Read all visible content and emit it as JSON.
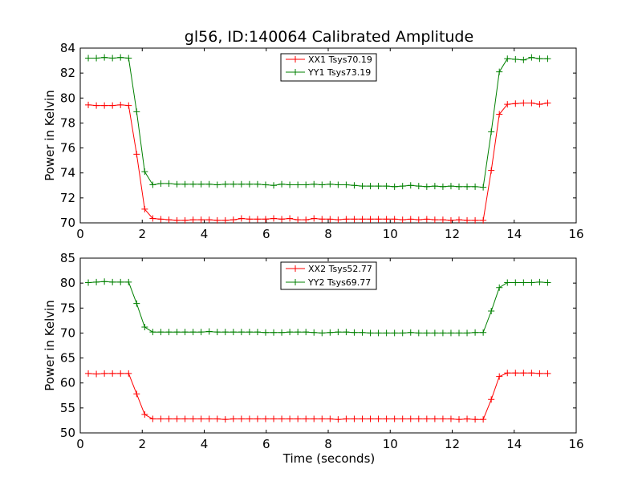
{
  "figure_title": "gl56, ID:140064 Calibrated Amplitude",
  "chart_data": [
    {
      "type": "line",
      "title": "gl56, ID:140064 Calibrated Amplitude",
      "xlabel": "",
      "ylabel": "Power in Kelvin",
      "xlim": [
        0,
        16
      ],
      "ylim": [
        70,
        84
      ],
      "xticks": [
        "0",
        "2",
        "4",
        "6",
        "8",
        "10",
        "12",
        "14",
        "16"
      ],
      "yticks": [
        "70",
        "72",
        "74",
        "76",
        "78",
        "80",
        "82",
        "84"
      ],
      "legend_position": "top-center",
      "x": [
        0.26,
        0.52,
        0.78,
        1.04,
        1.3,
        1.56,
        1.82,
        2.08,
        2.34,
        2.6,
        2.86,
        3.12,
        3.38,
        3.64,
        3.9,
        4.16,
        4.42,
        4.68,
        4.94,
        5.2,
        5.46,
        5.72,
        5.98,
        6.24,
        6.5,
        6.76,
        7.02,
        7.28,
        7.54,
        7.8,
        8.06,
        8.32,
        8.58,
        8.84,
        9.1,
        9.36,
        9.62,
        9.88,
        10.14,
        10.4,
        10.66,
        10.92,
        11.18,
        11.44,
        11.7,
        11.96,
        12.22,
        12.48,
        12.74,
        13.0,
        13.26,
        13.52,
        13.78,
        14.04,
        14.3,
        14.56,
        14.82,
        15.08
      ],
      "series": [
        {
          "name": "XX1 Tsys70.19",
          "color": "#ff0000",
          "values": [
            79.45,
            79.4,
            79.4,
            79.4,
            79.45,
            79.4,
            75.5,
            71.1,
            70.35,
            70.3,
            70.25,
            70.2,
            70.2,
            70.25,
            70.25,
            70.25,
            70.2,
            70.2,
            70.25,
            70.35,
            70.3,
            70.3,
            70.3,
            70.35,
            70.3,
            70.35,
            70.25,
            70.25,
            70.35,
            70.3,
            70.3,
            70.25,
            70.3,
            70.3,
            70.3,
            70.3,
            70.3,
            70.3,
            70.3,
            70.25,
            70.3,
            70.25,
            70.3,
            70.25,
            70.25,
            70.2,
            70.25,
            70.2,
            70.2,
            70.2,
            74.2,
            78.7,
            79.5,
            79.55,
            79.6,
            79.6,
            79.5,
            79.6
          ]
        },
        {
          "name": "YY1 Tsys73.19",
          "color": "#008000",
          "values": [
            83.2,
            83.2,
            83.25,
            83.2,
            83.25,
            83.2,
            78.9,
            74.1,
            73.05,
            73.15,
            73.15,
            73.1,
            73.1,
            73.1,
            73.1,
            73.1,
            73.05,
            73.1,
            73.1,
            73.1,
            73.1,
            73.1,
            73.05,
            73.0,
            73.1,
            73.05,
            73.05,
            73.05,
            73.1,
            73.05,
            73.1,
            73.05,
            73.05,
            73.0,
            72.95,
            72.95,
            72.95,
            72.95,
            72.9,
            72.95,
            73.0,
            72.95,
            72.9,
            72.95,
            72.9,
            72.95,
            72.9,
            72.9,
            72.9,
            72.85,
            77.3,
            82.1,
            83.15,
            83.1,
            83.05,
            83.25,
            83.15,
            83.15
          ]
        }
      ]
    },
    {
      "type": "line",
      "title": "",
      "xlabel": "Time (seconds)",
      "ylabel": "Power in Kelvin",
      "xlim": [
        0,
        16
      ],
      "ylim": [
        50,
        85
      ],
      "xticks": [
        "0",
        "2",
        "4",
        "6",
        "8",
        "10",
        "12",
        "14",
        "16"
      ],
      "yticks": [
        "50",
        "55",
        "60",
        "65",
        "70",
        "75",
        "80",
        "85"
      ],
      "legend_position": "top-center",
      "x": [
        0.26,
        0.52,
        0.78,
        1.04,
        1.3,
        1.56,
        1.82,
        2.08,
        2.34,
        2.6,
        2.86,
        3.12,
        3.38,
        3.64,
        3.9,
        4.16,
        4.42,
        4.68,
        4.94,
        5.2,
        5.46,
        5.72,
        5.98,
        6.24,
        6.5,
        6.76,
        7.02,
        7.28,
        7.54,
        7.8,
        8.06,
        8.32,
        8.58,
        8.84,
        9.1,
        9.36,
        9.62,
        9.88,
        10.14,
        10.4,
        10.66,
        10.92,
        11.18,
        11.44,
        11.7,
        11.96,
        12.22,
        12.48,
        12.74,
        13.0,
        13.26,
        13.52,
        13.78,
        14.04,
        14.3,
        14.56,
        14.82,
        15.08
      ],
      "series": [
        {
          "name": "XX2 Tsys52.77",
          "color": "#ff0000",
          "values": [
            61.9,
            61.8,
            61.9,
            61.9,
            61.9,
            61.9,
            57.8,
            53.7,
            52.8,
            52.8,
            52.8,
            52.8,
            52.8,
            52.8,
            52.8,
            52.8,
            52.8,
            52.7,
            52.8,
            52.8,
            52.8,
            52.8,
            52.8,
            52.8,
            52.8,
            52.8,
            52.8,
            52.8,
            52.8,
            52.8,
            52.8,
            52.7,
            52.8,
            52.8,
            52.8,
            52.8,
            52.8,
            52.8,
            52.8,
            52.8,
            52.8,
            52.8,
            52.8,
            52.8,
            52.8,
            52.8,
            52.7,
            52.8,
            52.7,
            52.7,
            56.7,
            61.3,
            62.0,
            62.0,
            62.0,
            62.0,
            61.9,
            61.9
          ]
        },
        {
          "name": "YY2 Tsys69.77",
          "color": "#008000",
          "values": [
            80.1,
            80.2,
            80.3,
            80.2,
            80.2,
            80.2,
            75.9,
            71.2,
            70.2,
            70.2,
            70.2,
            70.2,
            70.2,
            70.2,
            70.2,
            70.3,
            70.2,
            70.2,
            70.2,
            70.2,
            70.2,
            70.2,
            70.1,
            70.1,
            70.1,
            70.2,
            70.2,
            70.2,
            70.1,
            70.0,
            70.1,
            70.2,
            70.2,
            70.1,
            70.1,
            70.0,
            70.0,
            70.0,
            70.0,
            70.0,
            70.1,
            70.0,
            70.0,
            70.0,
            70.0,
            70.0,
            70.0,
            70.0,
            70.1,
            70.1,
            74.4,
            79.1,
            80.1,
            80.1,
            80.1,
            80.1,
            80.2,
            80.1
          ]
        }
      ]
    }
  ]
}
